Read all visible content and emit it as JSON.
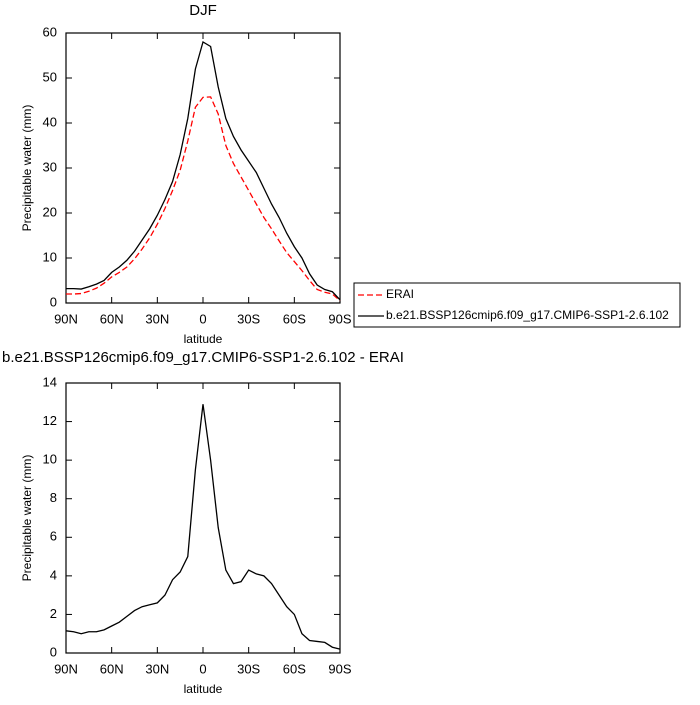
{
  "chart_data": [
    {
      "type": "line",
      "title": "DJF",
      "xlabel": "latitude",
      "ylabel": "Precipitable water (mm)",
      "x": [
        90,
        85,
        80,
        75,
        70,
        65,
        60,
        55,
        50,
        45,
        40,
        35,
        30,
        25,
        20,
        15,
        10,
        5,
        0,
        -5,
        -10,
        -15,
        -20,
        -25,
        -30,
        -35,
        -40,
        -45,
        -50,
        -55,
        -60,
        -65,
        -70,
        -75,
        -80,
        -85,
        -90
      ],
      "xlim": [
        90,
        -90
      ],
      "xticks": [
        {
          "value": 90,
          "label": "90N"
        },
        {
          "value": 60,
          "label": "60N"
        },
        {
          "value": 30,
          "label": "30N"
        },
        0,
        {
          "value": -30,
          "label": "30S"
        },
        {
          "value": -60,
          "label": "60S"
        },
        {
          "value": -90,
          "label": "90S"
        }
      ],
      "ylim": [
        0,
        60
      ],
      "yticks": [
        0,
        10,
        20,
        30,
        40,
        50,
        60
      ],
      "legend": "right",
      "series": [
        {
          "name": "ERAI",
          "color": "#ff0000",
          "linestyle": "dashed",
          "values": [
            2,
            2,
            2.1,
            2.6,
            3.3,
            4.4,
            5.8,
            6.8,
            8,
            9.8,
            12,
            14.5,
            17.5,
            21,
            25,
            29.5,
            36,
            43.5,
            45.7,
            45.8,
            42,
            35,
            31,
            28,
            25,
            22,
            19,
            16.5,
            13.8,
            11.2,
            9.2,
            7.2,
            5,
            3,
            2.4,
            2,
            0.5
          ]
        },
        {
          "name": "b.e21.BSSP126cmip6.f09_g17.CMIP6-SSP1-2.6.102",
          "color": "#000000",
          "linestyle": "solid",
          "values": [
            3.2,
            3.2,
            3.1,
            3.6,
            4.2,
            5,
            6.8,
            8,
            9.5,
            11.5,
            14,
            16.5,
            19.5,
            23,
            27,
            33,
            41,
            52,
            58,
            57,
            48,
            41,
            37,
            34,
            31.5,
            29,
            25.5,
            22,
            19,
            15.5,
            12.5,
            10,
            6.5,
            4,
            3,
            2.5,
            0.7
          ]
        }
      ]
    },
    {
      "type": "line",
      "title": "b.e21.BSSP126cmip6.f09_g17.CMIP6-SSP1-2.6.102 - ERAI",
      "xlabel": "latitude",
      "ylabel": "Precipitable water (mm)",
      "x": [
        90,
        85,
        80,
        75,
        70,
        65,
        60,
        55,
        50,
        45,
        40,
        35,
        30,
        25,
        20,
        15,
        10,
        5,
        0,
        -5,
        -10,
        -15,
        -20,
        -25,
        -30,
        -35,
        -40,
        -45,
        -50,
        -55,
        -60,
        -65,
        -70,
        -75,
        -80,
        -85,
        -90
      ],
      "xlim": [
        90,
        -90
      ],
      "xticks": [
        {
          "value": 90,
          "label": "90N"
        },
        {
          "value": 60,
          "label": "60N"
        },
        {
          "value": 30,
          "label": "30N"
        },
        0,
        {
          "value": -30,
          "label": "30S"
        },
        {
          "value": -60,
          "label": "60S"
        },
        {
          "value": -90,
          "label": "90S"
        }
      ],
      "ylim": [
        0,
        14
      ],
      "yticks": [
        0,
        2,
        4,
        6,
        8,
        10,
        12,
        14
      ],
      "series": [
        {
          "color": "#000000",
          "linestyle": "solid",
          "values": [
            1.15,
            1.1,
            1,
            1.1,
            1.1,
            1.2,
            1.4,
            1.6,
            1.9,
            2.2,
            2.4,
            2.5,
            2.6,
            3,
            3.8,
            4.2,
            5,
            9.5,
            12.9,
            10,
            6.5,
            4.3,
            3.6,
            3.7,
            4.3,
            4.1,
            4,
            3.6,
            3,
            2.4,
            2,
            1,
            0.65,
            0.6,
            0.55,
            0.3,
            0.2
          ]
        }
      ]
    }
  ]
}
